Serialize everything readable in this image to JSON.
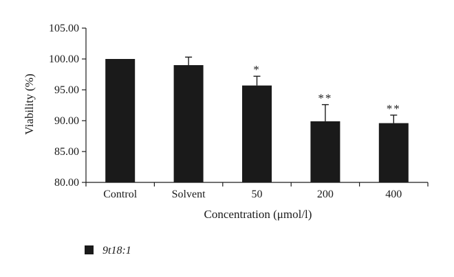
{
  "chart_data": {
    "type": "bar",
    "title": "",
    "xlabel": "Concentration (μmol/l)",
    "ylabel": "Viability (%)",
    "ylim": [
      80,
      105
    ],
    "yticks": [
      "80.00",
      "85.00",
      "90.00",
      "95.00",
      "100.00",
      "105.00"
    ],
    "categories": [
      "Control",
      "Solvent",
      "50",
      "200",
      "400"
    ],
    "series": [
      {
        "name": "9t18:1",
        "values": [
          100.0,
          99.0,
          95.7,
          89.9,
          89.6
        ],
        "errors": [
          0.0,
          1.3,
          1.5,
          2.7,
          1.3
        ],
        "annotations": [
          "",
          "",
          "*",
          "**",
          "**"
        ]
      }
    ],
    "bar_color": "#1a1a1a",
    "grid": false,
    "legend_position": "bottom-left"
  }
}
